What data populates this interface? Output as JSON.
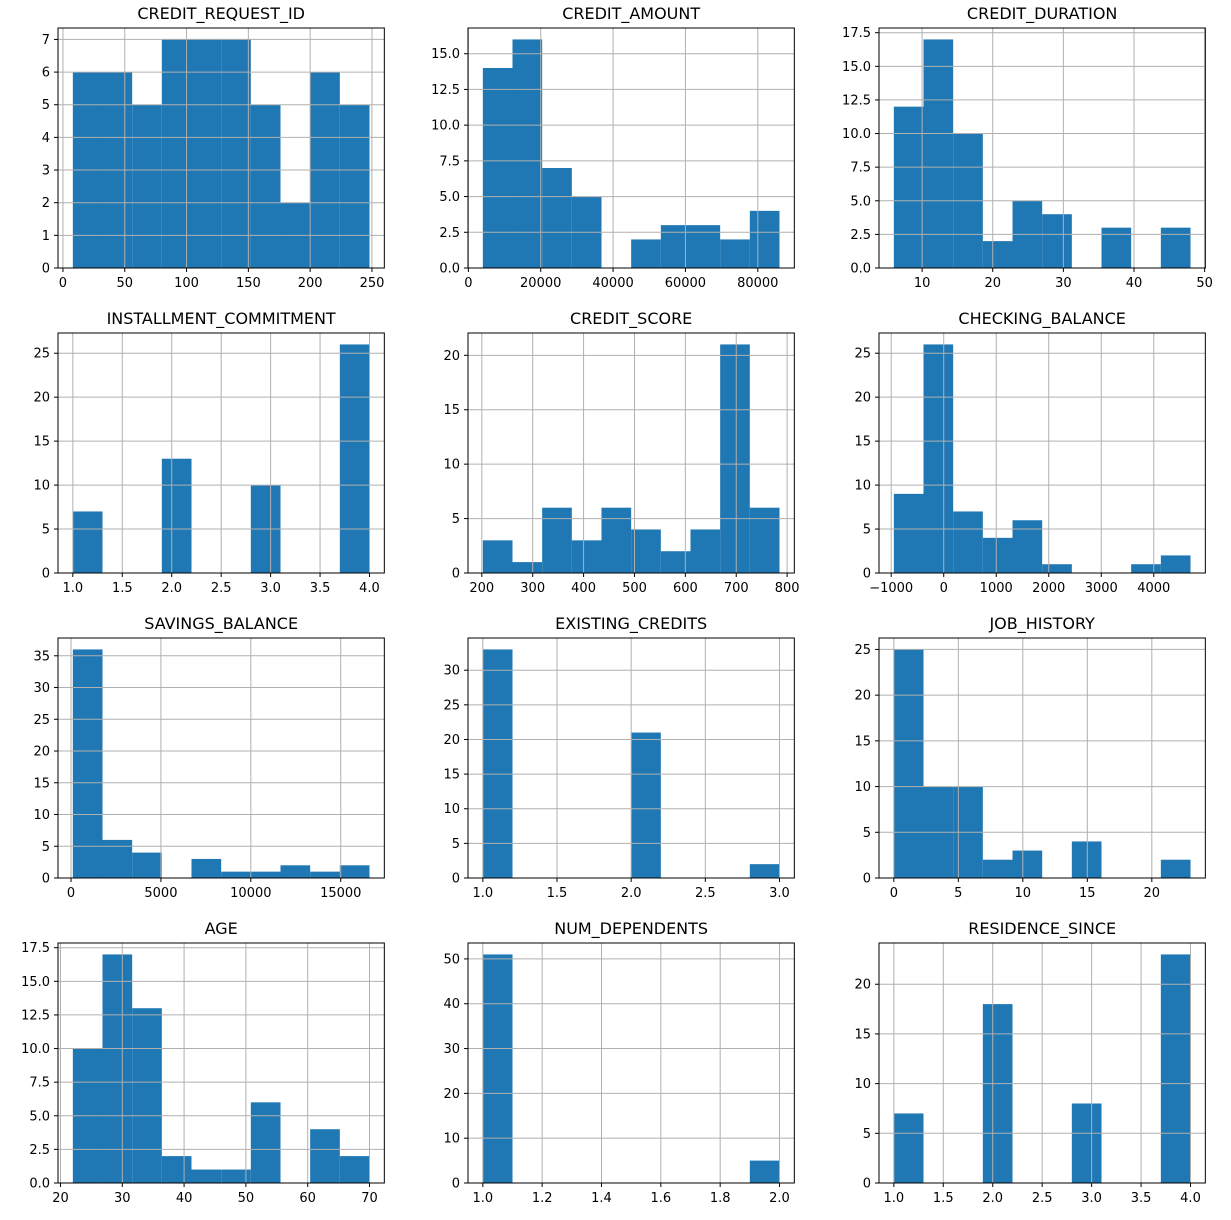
{
  "figure": {
    "background": "#ffffff",
    "bar_color": "#1f77b4",
    "grid_color": "#b0b0b0",
    "spine_color": "#000000",
    "text_color": "#000000",
    "grid": true,
    "legend": "none",
    "layout": {
      "rows": 4,
      "cols": 3
    }
  },
  "chart_data": [
    {
      "type": "bar",
      "chart_kind": "histogram",
      "title": "CREDIT_REQUEST_ID",
      "bin_start": 8,
      "bin_width": 24,
      "counts": [
        6,
        6,
        5,
        7,
        7,
        7,
        5,
        2,
        6,
        5
      ],
      "xlim": [
        -4,
        260
      ],
      "ylim": [
        0,
        7.35
      ],
      "xticks": [
        0,
        50,
        100,
        150,
        200,
        250
      ],
      "xtick_labels": [
        "0",
        "50",
        "100",
        "150",
        "200",
        "250"
      ],
      "yticks": [
        0,
        1,
        2,
        3,
        4,
        5,
        6,
        7
      ],
      "ytick_labels": [
        "0",
        "1",
        "2",
        "3",
        "4",
        "5",
        "6",
        "7"
      ]
    },
    {
      "type": "bar",
      "chart_kind": "histogram",
      "title": "CREDIT_AMOUNT",
      "bin_start": 4000,
      "bin_width": 8200,
      "counts": [
        14,
        16,
        7,
        5,
        0,
        2,
        3,
        3,
        2,
        4
      ],
      "xlim": [
        -100,
        90100
      ],
      "ylim": [
        0,
        16.8
      ],
      "xticks": [
        0,
        20000,
        40000,
        60000,
        80000
      ],
      "xtick_labels": [
        "0",
        "20000",
        "40000",
        "60000",
        "80000"
      ],
      "yticks": [
        0,
        2.5,
        5,
        7.5,
        10,
        12.5,
        15
      ],
      "ytick_labels": [
        "0.0",
        "2.5",
        "5.0",
        "7.5",
        "10.0",
        "12.5",
        "15.0"
      ]
    },
    {
      "type": "bar",
      "chart_kind": "histogram",
      "title": "CREDIT_DURATION",
      "bin_start": 6,
      "bin_width": 4.2,
      "counts": [
        12,
        17,
        10,
        2,
        5,
        4,
        0,
        3,
        0,
        3
      ],
      "xlim": [
        3.9,
        50.1
      ],
      "ylim": [
        0,
        17.85
      ],
      "xticks": [
        10,
        20,
        30,
        40,
        50
      ],
      "xtick_labels": [
        "10",
        "20",
        "30",
        "40",
        "50"
      ],
      "yticks": [
        0,
        2.5,
        5,
        7.5,
        10,
        12.5,
        15,
        17.5
      ],
      "ytick_labels": [
        "0.0",
        "2.5",
        "5.0",
        "7.5",
        "10.0",
        "12.5",
        "15.0",
        "17.5"
      ]
    },
    {
      "type": "bar",
      "chart_kind": "histogram",
      "title": "INSTALLMENT_COMMITMENT",
      "bin_start": 1,
      "bin_width": 0.3,
      "counts": [
        7,
        0,
        0,
        13,
        0,
        0,
        10,
        0,
        0,
        26
      ],
      "xlim": [
        0.85,
        4.15
      ],
      "ylim": [
        0,
        27.3
      ],
      "xticks": [
        1.0,
        1.5,
        2.0,
        2.5,
        3.0,
        3.5,
        4.0
      ],
      "xtick_labels": [
        "1.0",
        "1.5",
        "2.0",
        "2.5",
        "3.0",
        "3.5",
        "4.0"
      ],
      "yticks": [
        0,
        5,
        10,
        15,
        20,
        25
      ],
      "ytick_labels": [
        "0",
        "5",
        "10",
        "15",
        "20",
        "25"
      ]
    },
    {
      "type": "bar",
      "chart_kind": "histogram",
      "title": "CREDIT_SCORE",
      "bin_start": 202,
      "bin_width": 58.3,
      "counts": [
        3,
        1,
        6,
        3,
        6,
        4,
        2,
        4,
        21,
        6
      ],
      "xlim": [
        172.85,
        814.15
      ],
      "ylim": [
        0,
        22.05
      ],
      "xticks": [
        200,
        300,
        400,
        500,
        600,
        700,
        800
      ],
      "xtick_labels": [
        "200",
        "300",
        "400",
        "500",
        "600",
        "700",
        "800"
      ],
      "yticks": [
        0,
        5,
        10,
        15,
        20
      ],
      "ytick_labels": [
        "0",
        "5",
        "10",
        "15",
        "20"
      ]
    },
    {
      "type": "bar",
      "chart_kind": "histogram",
      "title": "CHECKING_BALANCE",
      "bin_start": -950,
      "bin_width": 565,
      "counts": [
        9,
        26,
        7,
        4,
        6,
        1,
        0,
        0,
        1,
        2
      ],
      "xlim": [
        -1232.5,
        4982.5
      ],
      "ylim": [
        0,
        27.3
      ],
      "xticks": [
        -1000,
        0,
        1000,
        2000,
        3000,
        4000
      ],
      "xtick_labels": [
        "−1000",
        "0",
        "1000",
        "2000",
        "3000",
        "4000"
      ],
      "yticks": [
        0,
        5,
        10,
        15,
        20,
        25
      ],
      "ytick_labels": [
        "0",
        "5",
        "10",
        "15",
        "20",
        "25"
      ]
    },
    {
      "type": "bar",
      "chart_kind": "histogram",
      "title": "SAVINGS_BALANCE",
      "bin_start": 100,
      "bin_width": 1650,
      "counts": [
        36,
        6,
        4,
        0,
        3,
        1,
        1,
        2,
        1,
        2
      ],
      "xlim": [
        -725,
        17425
      ],
      "ylim": [
        0,
        37.8
      ],
      "xticks": [
        0,
        5000,
        10000,
        15000
      ],
      "xtick_labels": [
        "0",
        "5000",
        "10000",
        "15000"
      ],
      "yticks": [
        0,
        5,
        10,
        15,
        20,
        25,
        30,
        35
      ],
      "ytick_labels": [
        "0",
        "5",
        "10",
        "15",
        "20",
        "25",
        "30",
        "35"
      ]
    },
    {
      "type": "bar",
      "chart_kind": "histogram",
      "title": "EXISTING_CREDITS",
      "bin_start": 1,
      "bin_width": 0.2,
      "counts": [
        33,
        0,
        0,
        0,
        0,
        21,
        0,
        0,
        0,
        2
      ],
      "xlim": [
        0.9,
        3.1
      ],
      "ylim": [
        0,
        34.65
      ],
      "xticks": [
        1.0,
        1.5,
        2.0,
        2.5,
        3.0
      ],
      "xtick_labels": [
        "1.0",
        "1.5",
        "2.0",
        "2.5",
        "3.0"
      ],
      "yticks": [
        0,
        5,
        10,
        15,
        20,
        25,
        30
      ],
      "ytick_labels": [
        "0",
        "5",
        "10",
        "15",
        "20",
        "25",
        "30"
      ]
    },
    {
      "type": "bar",
      "chart_kind": "histogram",
      "title": "JOB_HISTORY",
      "bin_start": 0,
      "bin_width": 2.3,
      "counts": [
        25,
        10,
        10,
        2,
        3,
        0,
        4,
        0,
        0,
        2
      ],
      "xlim": [
        -1.15,
        24.15
      ],
      "ylim": [
        0,
        26.25
      ],
      "xticks": [
        0,
        5,
        10,
        15,
        20
      ],
      "xtick_labels": [
        "0",
        "5",
        "10",
        "15",
        "20"
      ],
      "yticks": [
        0,
        5,
        10,
        15,
        20,
        25
      ],
      "ytick_labels": [
        "0",
        "5",
        "10",
        "15",
        "20",
        "25"
      ]
    },
    {
      "type": "bar",
      "chart_kind": "histogram",
      "title": "AGE",
      "bin_start": 22,
      "bin_width": 4.8,
      "counts": [
        10,
        17,
        13,
        2,
        1,
        1,
        6,
        0,
        4,
        2
      ],
      "xlim": [
        19.6,
        72.4
      ],
      "ylim": [
        0,
        17.85
      ],
      "xticks": [
        20,
        30,
        40,
        50,
        60,
        70
      ],
      "xtick_labels": [
        "20",
        "30",
        "40",
        "50",
        "60",
        "70"
      ],
      "yticks": [
        0,
        2.5,
        5,
        7.5,
        10,
        12.5,
        15,
        17.5
      ],
      "ytick_labels": [
        "0.0",
        "2.5",
        "5.0",
        "7.5",
        "10.0",
        "12.5",
        "15.0",
        "17.5"
      ]
    },
    {
      "type": "bar",
      "chart_kind": "histogram",
      "title": "NUM_DEPENDENTS",
      "bin_start": 1,
      "bin_width": 0.1,
      "counts": [
        51,
        0,
        0,
        0,
        0,
        0,
        0,
        0,
        0,
        5
      ],
      "xlim": [
        0.95,
        2.05
      ],
      "ylim": [
        0,
        53.55
      ],
      "xticks": [
        1.0,
        1.2,
        1.4,
        1.6,
        1.8,
        2.0
      ],
      "xtick_labels": [
        "1.0",
        "1.2",
        "1.4",
        "1.6",
        "1.8",
        "2.0"
      ],
      "yticks": [
        0,
        10,
        20,
        30,
        40,
        50
      ],
      "ytick_labels": [
        "0",
        "10",
        "20",
        "30",
        "40",
        "50"
      ]
    },
    {
      "type": "bar",
      "chart_kind": "histogram",
      "title": "RESIDENCE_SINCE",
      "bin_start": 1,
      "bin_width": 0.3,
      "counts": [
        7,
        0,
        0,
        18,
        0,
        0,
        8,
        0,
        0,
        23
      ],
      "xlim": [
        0.85,
        4.15
      ],
      "ylim": [
        0,
        24.15
      ],
      "xticks": [
        1.0,
        1.5,
        2.0,
        2.5,
        3.0,
        3.5,
        4.0
      ],
      "xtick_labels": [
        "1.0",
        "1.5",
        "2.0",
        "2.5",
        "3.0",
        "3.5",
        "4.0"
      ],
      "yticks": [
        0,
        5,
        10,
        15,
        20
      ],
      "ytick_labels": [
        "0",
        "5",
        "10",
        "15",
        "20"
      ]
    }
  ]
}
